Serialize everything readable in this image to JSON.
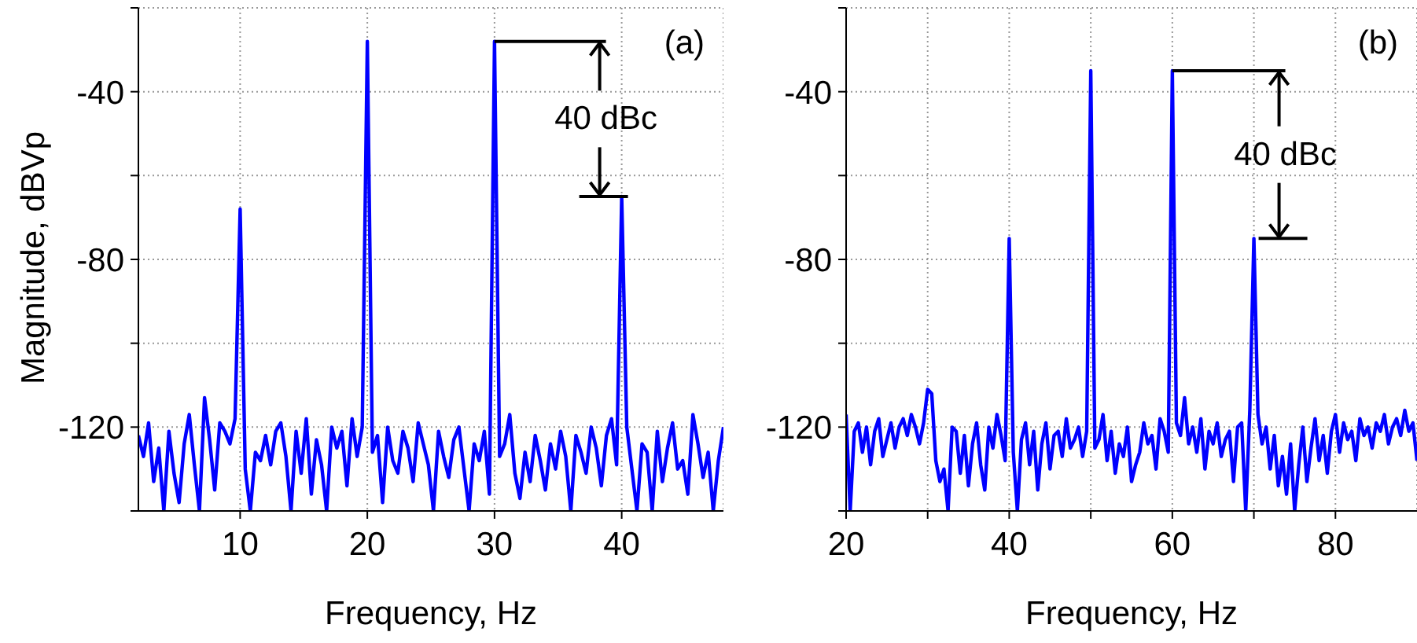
{
  "chart_data": [
    {
      "type": "line",
      "xlabel": "Frequency, Hz",
      "ylabel": "Magnitude, dBVp",
      "xlim": [
        2,
        48
      ],
      "xticks": [
        10,
        20,
        30,
        40
      ],
      "ylim": [
        -140,
        -20
      ],
      "yticks": [
        {
          "value": -20,
          "label": null
        },
        -40,
        {
          "value": -60,
          "label": null
        },
        -80,
        {
          "value": -100,
          "label": null
        },
        -120,
        {
          "value": -140,
          "label": null
        }
      ],
      "grid": true,
      "marker": "none",
      "line_style": "solid",
      "annotations": [
        "(a)",
        {
          "text": "40 dBc",
          "x": 40,
          "y": -65
        }
      ],
      "series": [
        {
          "color": "#0000ff",
          "x": [
            2,
            2.4,
            2.8,
            3.2,
            3.6,
            4,
            4.4,
            4.8,
            5.2,
            5.6,
            6,
            6.4,
            6.8,
            7.2,
            7.6,
            8,
            8.4,
            8.8,
            9.2,
            9.6,
            10,
            10.4,
            10.8,
            11.2,
            11.6,
            12,
            12.4,
            12.8,
            13.2,
            13.6,
            14,
            14.4,
            14.8,
            15.2,
            15.6,
            16,
            16.4,
            16.8,
            17.2,
            17.6,
            18,
            18.4,
            18.8,
            19.2,
            19.6,
            20,
            20.4,
            20.8,
            21.2,
            21.6,
            22,
            22.4,
            22.8,
            23.2,
            23.6,
            24,
            24.4,
            24.8,
            25.2,
            25.6,
            26,
            26.4,
            26.8,
            27.2,
            27.6,
            28,
            28.4,
            28.8,
            29.2,
            29.6,
            30,
            30.4,
            30.8,
            31.2,
            31.6,
            32,
            32.4,
            32.8,
            33.2,
            33.6,
            34,
            34.4,
            34.8,
            35.2,
            35.6,
            36,
            36.4,
            36.8,
            37.2,
            37.6,
            38,
            38.4,
            38.8,
            39.2,
            39.6,
            40,
            40.4,
            40.8,
            41.2,
            41.6,
            42,
            42.4,
            42.8,
            43.2,
            43.6,
            44,
            44.4,
            44.8,
            45.2,
            45.6,
            46,
            46.4,
            46.8,
            47.2,
            47.6,
            48
          ],
          "values": [
            -122,
            -127,
            -119,
            -133,
            -125,
            -140,
            -121,
            -131,
            -138,
            -124,
            -117,
            -129,
            -140,
            -113,
            -123,
            -135,
            -119,
            -121,
            -124,
            -118,
            -68,
            -130,
            -140,
            -126,
            -128,
            -122,
            -129,
            -121,
            -119,
            -127,
            -140,
            -121,
            -131,
            -118,
            -136,
            -123,
            -129,
            -140,
            -120,
            -125,
            -121,
            -134,
            -118,
            -127,
            -120,
            -28,
            -126,
            -122,
            -138,
            -120,
            -128,
            -131,
            -121,
            -125,
            -133,
            -119,
            -124,
            -129,
            -140,
            -121,
            -127,
            -132,
            -123,
            -120,
            -130,
            -140,
            -124,
            -128,
            -121,
            -136,
            -28,
            -127,
            -124,
            -117,
            -131,
            -137,
            -126,
            -133,
            -122,
            -128,
            -135,
            -124,
            -130,
            -121,
            -127,
            -140,
            -122,
            -126,
            -131,
            -120,
            -125,
            -134,
            -122,
            -118,
            -129,
            -65,
            -120,
            -130,
            -140,
            -124,
            -126,
            -140,
            -121,
            -133,
            -125,
            -119,
            -130,
            -128,
            -136,
            -117,
            -124,
            -132,
            -126,
            -140,
            -128,
            -120
          ]
        }
      ]
    },
    {
      "type": "line",
      "xlabel": "Frequency, Hz",
      "xlim": [
        20,
        90
      ],
      "xticks": [
        20,
        {
          "value": 30,
          "label": null
        },
        40,
        {
          "value": 50,
          "label": null
        },
        60,
        {
          "value": 70,
          "label": null
        },
        80
      ],
      "ylim": [
        -140,
        -20
      ],
      "yticks": [
        {
          "value": -20,
          "label": null
        },
        -40,
        {
          "value": -60,
          "label": null
        },
        -80,
        {
          "value": -100,
          "label": null
        },
        -120,
        {
          "value": -140,
          "label": null
        }
      ],
      "grid": true,
      "marker": "none",
      "line_style": "solid",
      "annotations": [
        "(b)",
        {
          "text": "40 dBc",
          "x": 70,
          "y": -75
        }
      ],
      "series": [
        {
          "color": "#0000ff",
          "x": [
            20,
            20.5,
            21,
            21.5,
            22,
            22.5,
            23,
            23.5,
            24,
            24.5,
            25,
            25.5,
            26,
            26.5,
            27,
            27.5,
            28,
            28.5,
            29,
            29.5,
            30,
            30.5,
            31,
            31.5,
            32,
            32.5,
            33,
            33.5,
            34,
            34.5,
            35,
            35.5,
            36,
            36.5,
            37,
            37.5,
            38,
            38.5,
            39,
            39.5,
            40,
            40.5,
            41,
            41.5,
            42,
            42.5,
            43,
            43.5,
            44,
            44.5,
            45,
            45.5,
            46,
            46.5,
            47,
            47.5,
            48,
            48.5,
            49,
            49.5,
            50,
            50.5,
            51,
            51.5,
            52,
            52.5,
            53,
            53.5,
            54,
            54.5,
            55,
            55.5,
            56,
            56.5,
            57,
            57.5,
            58,
            58.5,
            59,
            59.5,
            60,
            60.5,
            61,
            61.5,
            62,
            62.5,
            63,
            63.5,
            64,
            64.5,
            65,
            65.5,
            66,
            66.5,
            67,
            67.5,
            68,
            68.5,
            69,
            69.5,
            70,
            70.5,
            71,
            71.5,
            72,
            72.5,
            73,
            73.5,
            74,
            74.5,
            75,
            75.5,
            76,
            76.5,
            77,
            77.5,
            78,
            78.5,
            79,
            79.5,
            80,
            80.5,
            81,
            81.5,
            82,
            82.5,
            83,
            83.5,
            84,
            84.5,
            85,
            85.5,
            86,
            86.5,
            87,
            87.5,
            88,
            88.5,
            89,
            89.5,
            90
          ],
          "values": [
            -117,
            -140,
            -121,
            -119,
            -126,
            -120,
            -129,
            -121,
            -118,
            -127,
            -123,
            -119,
            -125,
            -120,
            -118,
            -122,
            -117,
            -120,
            -124,
            -119,
            -111,
            -112,
            -128,
            -133,
            -130,
            -140,
            -120,
            -121,
            -131,
            -122,
            -134,
            -124,
            -119,
            -129,
            -135,
            -120,
            -125,
            -117,
            -122,
            -128,
            -75,
            -126,
            -140,
            -123,
            -119,
            -129,
            -121,
            -135,
            -124,
            -119,
            -130,
            -122,
            -121,
            -127,
            -118,
            -125,
            -123,
            -120,
            -127,
            -121,
            -35,
            -125,
            -123,
            -117,
            -128,
            -121,
            -131,
            -124,
            -127,
            -120,
            -133,
            -129,
            -126,
            -119,
            -124,
            -122,
            -130,
            -118,
            -121,
            -126,
            -35,
            -119,
            -122,
            -113,
            -124,
            -120,
            -126,
            -118,
            -130,
            -121,
            -124,
            -119,
            -127,
            -123,
            -121,
            -133,
            -120,
            -119,
            -140,
            -116,
            -75,
            -117,
            -124,
            -120,
            -130,
            -122,
            -134,
            -127,
            -136,
            -124,
            -140,
            -129,
            -120,
            -133,
            -125,
            -118,
            -128,
            -122,
            -131,
            -121,
            -117,
            -126,
            -119,
            -123,
            -121,
            -128,
            -118,
            -122,
            -120,
            -125,
            -119,
            -121,
            -117,
            -124,
            -120,
            -118,
            -122,
            -116,
            -121,
            -119,
            -128
          ]
        }
      ]
    }
  ]
}
